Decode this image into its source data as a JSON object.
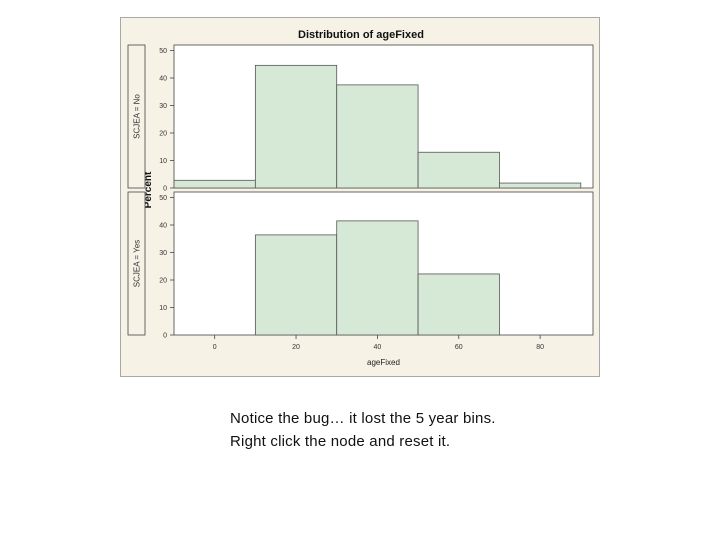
{
  "chart_data": {
    "type": "bar",
    "title": "Distribution of ageFixed",
    "xlabel": "ageFixed",
    "ylabel": "Percent",
    "xlim": [
      -10,
      93
    ],
    "ylim": [
      0,
      52
    ],
    "xticks": [
      "0",
      "20",
      "40",
      "60",
      "80"
    ],
    "yticks": [
      "0",
      "10",
      "20",
      "30",
      "40",
      "50"
    ],
    "bin_edges": [
      -10,
      10,
      30,
      50,
      70,
      90
    ],
    "grid": false,
    "legend": "none",
    "bar_fill": "#d6e8d6",
    "bar_stroke": "#555555",
    "panels": [
      {
        "label": "SCJEA = No",
        "values": [
          2.8,
          44.6,
          37.5,
          13.0,
          1.8
        ]
      },
      {
        "label": "SCJEA = Yes",
        "values": [
          0,
          36.4,
          41.5,
          22.2,
          0
        ]
      }
    ]
  },
  "caption": {
    "line1": "Notice the bug… it lost the 5 year bins.",
    "line2": "Right click the node and reset it."
  }
}
